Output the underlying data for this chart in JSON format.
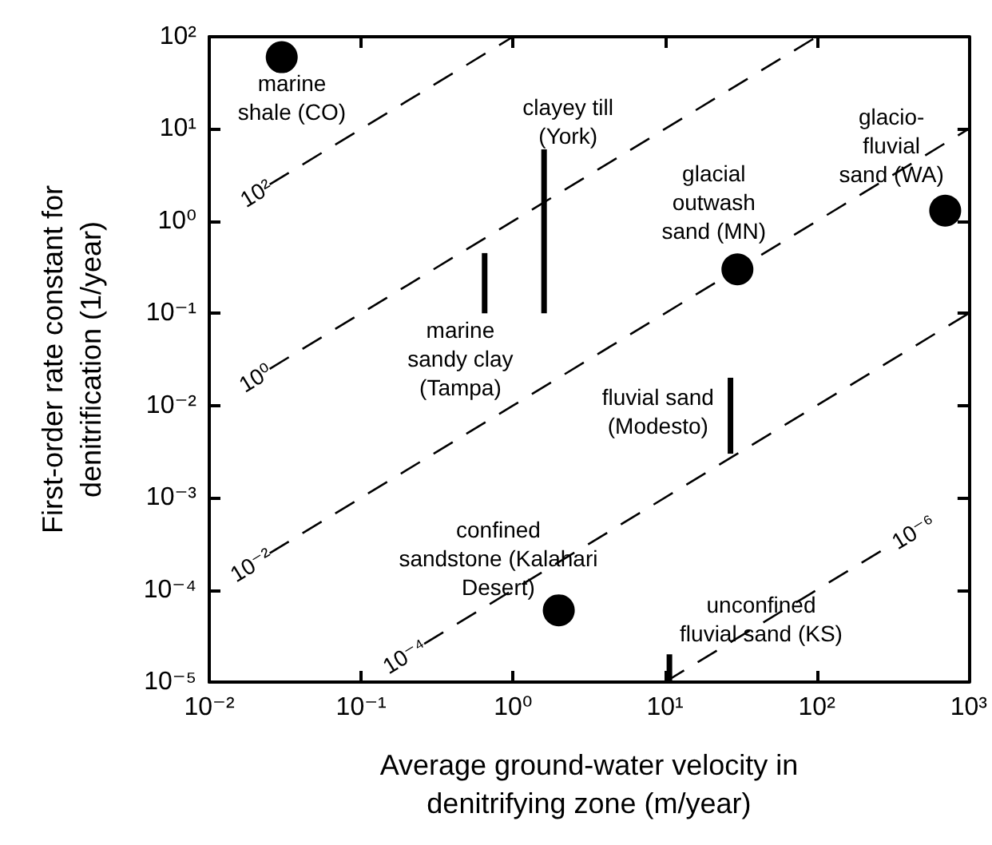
{
  "chart_data": {
    "type": "scatter",
    "xlabel": "Average ground-water velocity in\ndenitrifying zone (m/year)",
    "ylabel": "First-order rate constant for\ndenitrification (1/year)",
    "log": "xy",
    "grid": false,
    "legend": false,
    "xlim": [
      0.01,
      1000
    ],
    "ylim": [
      1e-05,
      100
    ],
    "xticks": [
      {
        "value": 0.01,
        "label": "10⁻²"
      },
      {
        "value": 0.1,
        "label": "10⁻¹"
      },
      {
        "value": 1,
        "label": "10⁰"
      },
      {
        "value": 10,
        "label": "10¹"
      },
      {
        "value": 100,
        "label": "10²"
      },
      {
        "value": 1000,
        "label": "10³"
      }
    ],
    "yticks": [
      {
        "value": 1e-05,
        "label": "10⁻⁵"
      },
      {
        "value": 0.0001,
        "label": "10⁻⁴"
      },
      {
        "value": 0.001,
        "label": "10⁻³"
      },
      {
        "value": 0.01,
        "label": "10⁻²"
      },
      {
        "value": 0.1,
        "label": "10⁻¹"
      },
      {
        "value": 1,
        "label": "10⁰"
      },
      {
        "value": 10,
        "label": "10¹"
      },
      {
        "value": 100,
        "label": "10²"
      }
    ],
    "series": [
      {
        "type": "scatter",
        "marker": "circle",
        "color": "#000000",
        "x": [
          0.03,
          30,
          700,
          2
        ],
        "values": [
          60,
          0.3,
          1.3,
          6e-05
        ]
      },
      {
        "type": "line",
        "marker": "none",
        "line_style": "solid",
        "color": "#000000",
        "x": [
          1.6,
          1.6
        ],
        "values": [
          0.1,
          6
        ]
      },
      {
        "type": "line",
        "marker": "none",
        "line_style": "solid",
        "color": "#000000",
        "x": [
          0.65,
          0.65
        ],
        "values": [
          0.1,
          0.45
        ]
      },
      {
        "type": "line",
        "marker": "none",
        "line_style": "solid",
        "color": "#000000",
        "x": [
          27,
          27
        ],
        "values": [
          0.003,
          0.02
        ]
      },
      {
        "type": "line",
        "marker": "none",
        "line_style": "solid",
        "color": "#000000",
        "x": [
          10.7,
          10.7
        ],
        "values": [
          1e-05,
          2e-05
        ]
      },
      {
        "type": "line",
        "name": "10²",
        "marker": "none",
        "line_style": "dashed",
        "color": "#000000",
        "x": [
          0.025,
          1
        ],
        "values": [
          2.5,
          100
        ]
      },
      {
        "type": "line",
        "name": "10⁰",
        "marker": "none",
        "line_style": "dashed",
        "color": "#000000",
        "x": [
          0.025,
          100
        ],
        "values": [
          0.025,
          100
        ]
      },
      {
        "type": "line",
        "name": "10⁻²",
        "marker": "none",
        "line_style": "dashed",
        "color": "#000000",
        "x": [
          0.025,
          1000
        ],
        "values": [
          0.00025,
          10
        ]
      },
      {
        "type": "line",
        "name": "10⁻⁴",
        "marker": "none",
        "line_style": "dashed",
        "color": "#000000",
        "x": [
          0.26,
          1000
        ],
        "values": [
          2.6e-05,
          0.1
        ]
      },
      {
        "type": "line",
        "name": "10⁻⁶",
        "marker": "none",
        "line_style": "dashed",
        "color": "#000000",
        "x": [
          10,
          320
        ],
        "values": [
          1e-05,
          0.00032
        ]
      }
    ],
    "annotations": [
      "marine\nshale (CO)",
      "clayey till\n(York)",
      "marine\nsandy clay\n(Tampa)",
      "glacial\noutwash\nsand (MN)",
      "glacio-\nfluvial\nsand (WA)",
      "fluvial sand\n(Modesto)",
      "confined\nsandstone (Kalahari\nDesert)",
      "unconfined\nfluvial sand (KS)"
    ]
  }
}
